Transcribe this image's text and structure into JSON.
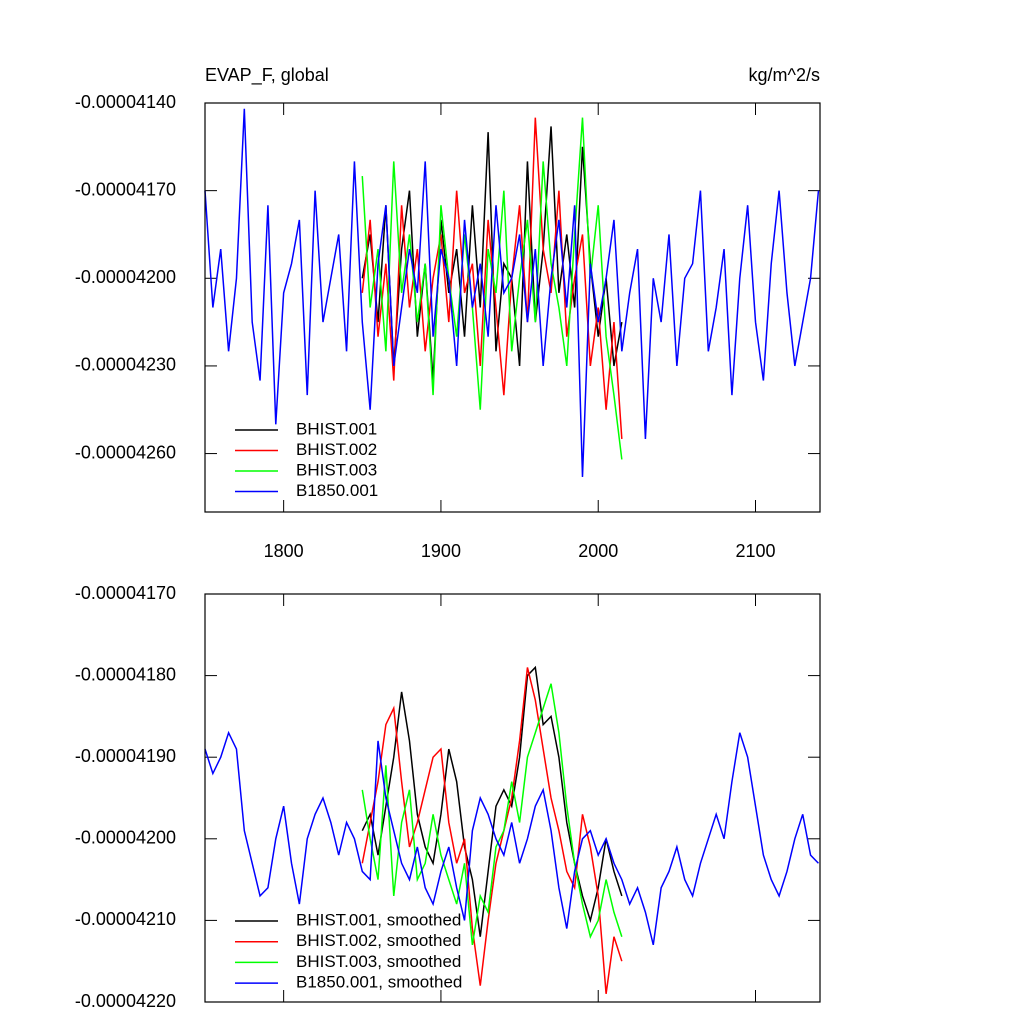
{
  "chart_data": [
    {
      "type": "line",
      "title": "EVAP_F, global",
      "units": "kg/m^2/s",
      "xlim": [
        1750,
        2141
      ],
      "xticks": [
        1800,
        1900,
        2000,
        2100
      ],
      "ylim": [
        -4.28e-05,
        -4.14e-05
      ],
      "yticks": [
        {
          "value": -4.14e-05,
          "label": "-0.00004140"
        },
        {
          "value": -4.17e-05,
          "label": "-0.00004170"
        },
        {
          "value": -4.2e-05,
          "label": "-0.00004200"
        },
        {
          "value": -4.23e-05,
          "label": "-0.00004230"
        },
        {
          "value": -4.26e-05,
          "label": "-0.00004260"
        }
      ],
      "series": [
        {
          "name": "BHIST.001",
          "color": "#000000",
          "x": [
            1850,
            1855,
            1860,
            1865,
            1870,
            1875,
            1880,
            1885,
            1890,
            1895,
            1900,
            1905,
            1910,
            1915,
            1920,
            1925,
            1930,
            1935,
            1940,
            1945,
            1950,
            1955,
            1960,
            1965,
            1970,
            1975,
            1980,
            1985,
            1990,
            1995,
            2000,
            2005,
            2010,
            2015
          ],
          "values": [
            -4.2e-05,
            -4.185e-05,
            -4.215e-05,
            -4.175e-05,
            -4.23e-05,
            -4.19e-05,
            -4.17e-05,
            -4.22e-05,
            -4.195e-05,
            -4.235e-05,
            -4.18e-05,
            -4.205e-05,
            -4.19e-05,
            -4.22e-05,
            -4.175e-05,
            -4.21e-05,
            -4.15e-05,
            -4.225e-05,
            -4.195e-05,
            -4.2e-05,
            -4.23e-05,
            -4.16e-05,
            -4.215e-05,
            -4.19e-05,
            -4.148e-05,
            -4.205e-05,
            -4.185e-05,
            -4.21e-05,
            -4.155e-05,
            -4.195e-05,
            -4.22e-05,
            -4.2e-05,
            -4.23e-05,
            -4.215e-05
          ]
        },
        {
          "name": "BHIST.002",
          "color": "#ff0000",
          "x": [
            1850,
            1855,
            1860,
            1865,
            1870,
            1875,
            1880,
            1885,
            1890,
            1895,
            1900,
            1905,
            1910,
            1915,
            1920,
            1925,
            1930,
            1935,
            1940,
            1945,
            1950,
            1955,
            1960,
            1965,
            1970,
            1975,
            1980,
            1985,
            1990,
            1995,
            2000,
            2005,
            2010,
            2015
          ],
          "values": [
            -4.205e-05,
            -4.18e-05,
            -4.22e-05,
            -4.195e-05,
            -4.235e-05,
            -4.175e-05,
            -4.21e-05,
            -4.19e-05,
            -4.225e-05,
            -4.2e-05,
            -4.185e-05,
            -4.215e-05,
            -4.17e-05,
            -4.205e-05,
            -4.195e-05,
            -4.23e-05,
            -4.18e-05,
            -4.21e-05,
            -4.24e-05,
            -4.2e-05,
            -4.175e-05,
            -4.215e-05,
            -4.145e-05,
            -4.19e-05,
            -4.205e-05,
            -4.17e-05,
            -4.22e-05,
            -4.2e-05,
            -4.185e-05,
            -4.23e-05,
            -4.21e-05,
            -4.245e-05,
            -4.215e-05,
            -4.255e-05
          ]
        },
        {
          "name": "BHIST.003",
          "color": "#00ff00",
          "x": [
            1850,
            1855,
            1860,
            1865,
            1870,
            1875,
            1880,
            1885,
            1890,
            1895,
            1900,
            1905,
            1910,
            1915,
            1920,
            1925,
            1930,
            1935,
            1940,
            1945,
            1950,
            1955,
            1960,
            1965,
            1970,
            1975,
            1980,
            1985,
            1990,
            1995,
            2000,
            2005,
            2010,
            2015
          ],
          "values": [
            -4.165e-05,
            -4.21e-05,
            -4.19e-05,
            -4.225e-05,
            -4.16e-05,
            -4.205e-05,
            -4.185e-05,
            -4.215e-05,
            -4.195e-05,
            -4.24e-05,
            -4.175e-05,
            -4.2e-05,
            -4.22e-05,
            -4.185e-05,
            -4.21e-05,
            -4.245e-05,
            -4.19e-05,
            -4.205e-05,
            -4.17e-05,
            -4.225e-05,
            -4.2e-05,
            -4.18e-05,
            -4.215e-05,
            -4.16e-05,
            -4.195e-05,
            -4.21e-05,
            -4.23e-05,
            -4.185e-05,
            -4.145e-05,
            -4.2e-05,
            -4.175e-05,
            -4.22e-05,
            -4.24e-05,
            -4.262e-05
          ]
        },
        {
          "name": "B1850.001",
          "color": "#0000ff",
          "x": [
            1750,
            1755,
            1760,
            1765,
            1770,
            1775,
            1780,
            1785,
            1790,
            1795,
            1800,
            1805,
            1810,
            1815,
            1820,
            1825,
            1830,
            1835,
            1840,
            1845,
            1850,
            1855,
            1860,
            1865,
            1870,
            1875,
            1880,
            1885,
            1890,
            1895,
            1900,
            1905,
            1910,
            1915,
            1920,
            1925,
            1930,
            1935,
            1940,
            1945,
            1950,
            1955,
            1960,
            1965,
            1970,
            1975,
            1980,
            1985,
            1990,
            1995,
            2000,
            2005,
            2010,
            2015,
            2020,
            2025,
            2030,
            2035,
            2040,
            2045,
            2050,
            2055,
            2060,
            2065,
            2070,
            2075,
            2080,
            2085,
            2090,
            2095,
            2100,
            2105,
            2110,
            2115,
            2120,
            2125,
            2130,
            2135,
            2140
          ],
          "values": [
            -4.17e-05,
            -4.21e-05,
            -4.19e-05,
            -4.225e-05,
            -4.2e-05,
            -4.142e-05,
            -4.215e-05,
            -4.235e-05,
            -4.175e-05,
            -4.25e-05,
            -4.205e-05,
            -4.195e-05,
            -4.18e-05,
            -4.24e-05,
            -4.17e-05,
            -4.215e-05,
            -4.2e-05,
            -4.185e-05,
            -4.225e-05,
            -4.16e-05,
            -4.215e-05,
            -4.245e-05,
            -4.195e-05,
            -4.175e-05,
            -4.23e-05,
            -4.21e-05,
            -4.19e-05,
            -4.205e-05,
            -4.16e-05,
            -4.22e-05,
            -4.19e-05,
            -4.2e-05,
            -4.23e-05,
            -4.18e-05,
            -4.21e-05,
            -4.195e-05,
            -4.22e-05,
            -4.175e-05,
            -4.205e-05,
            -4.2e-05,
            -4.185e-05,
            -4.215e-05,
            -4.19e-05,
            -4.23e-05,
            -4.2e-05,
            -4.18e-05,
            -4.21e-05,
            -4.175e-05,
            -4.268e-05,
            -4.195e-05,
            -4.215e-05,
            -4.2e-05,
            -4.18e-05,
            -4.225e-05,
            -4.205e-05,
            -4.19e-05,
            -4.255e-05,
            -4.2e-05,
            -4.215e-05,
            -4.185e-05,
            -4.23e-05,
            -4.2e-05,
            -4.195e-05,
            -4.17e-05,
            -4.225e-05,
            -4.21e-05,
            -4.19e-05,
            -4.24e-05,
            -4.2e-05,
            -4.175e-05,
            -4.215e-05,
            -4.235e-05,
            -4.195e-05,
            -4.17e-05,
            -4.205e-05,
            -4.23e-05,
            -4.215e-05,
            -4.2e-05,
            -4.17e-05
          ]
        }
      ]
    },
    {
      "type": "line",
      "xlim": [
        1750,
        2141
      ],
      "xticks": [
        1800,
        1900,
        2000,
        2100
      ],
      "ylim": [
        -4.22e-05,
        -4.17e-05
      ],
      "yticks": [
        {
          "value": -4.17e-05,
          "label": "-0.00004170"
        },
        {
          "value": -4.18e-05,
          "label": "-0.00004180"
        },
        {
          "value": -4.19e-05,
          "label": "-0.00004190"
        },
        {
          "value": -4.2e-05,
          "label": "-0.00004200"
        },
        {
          "value": -4.21e-05,
          "label": "-0.00004210"
        },
        {
          "value": -4.22e-05,
          "label": "-0.00004220"
        }
      ],
      "series": [
        {
          "name": "BHIST.001, smoothed",
          "color": "#000000",
          "x": [
            1850,
            1855,
            1860,
            1865,
            1870,
            1875,
            1880,
            1885,
            1890,
            1895,
            1900,
            1905,
            1910,
            1915,
            1920,
            1925,
            1930,
            1935,
            1940,
            1945,
            1950,
            1955,
            1960,
            1965,
            1970,
            1975,
            1980,
            1985,
            1990,
            1995,
            2000,
            2005,
            2010,
            2015
          ],
          "values": [
            -4.199e-05,
            -4.197e-05,
            -4.202e-05,
            -4.196e-05,
            -4.19e-05,
            -4.182e-05,
            -4.188e-05,
            -4.197e-05,
            -4.201e-05,
            -4.203e-05,
            -4.197e-05,
            -4.189e-05,
            -4.193e-05,
            -4.201e-05,
            -4.205e-05,
            -4.212e-05,
            -4.204e-05,
            -4.196e-05,
            -4.194e-05,
            -4.196e-05,
            -4.19e-05,
            -4.18e-05,
            -4.179e-05,
            -4.186e-05,
            -4.185e-05,
            -4.19e-05,
            -4.198e-05,
            -4.203e-05,
            -4.207e-05,
            -4.21e-05,
            -4.206e-05,
            -4.2e-05,
            -4.204e-05,
            -4.207e-05
          ]
        },
        {
          "name": "BHIST.002, smoothed",
          "color": "#ff0000",
          "x": [
            1850,
            1855,
            1860,
            1865,
            1870,
            1875,
            1880,
            1885,
            1890,
            1895,
            1900,
            1905,
            1910,
            1915,
            1920,
            1925,
            1930,
            1935,
            1940,
            1945,
            1950,
            1955,
            1960,
            1965,
            1970,
            1975,
            1980,
            1985,
            1990,
            1995,
            2000,
            2005,
            2010,
            2015
          ],
          "values": [
            -4.203e-05,
            -4.198e-05,
            -4.193e-05,
            -4.186e-05,
            -4.184e-05,
            -4.193e-05,
            -4.201e-05,
            -4.198e-05,
            -4.194e-05,
            -4.19e-05,
            -4.189e-05,
            -4.198e-05,
            -4.203e-05,
            -4.2e-05,
            -4.211e-05,
            -4.218e-05,
            -4.21e-05,
            -4.203e-05,
            -4.199e-05,
            -4.195e-05,
            -4.188e-05,
            -4.179e-05,
            -4.183e-05,
            -4.189e-05,
            -4.195e-05,
            -4.199e-05,
            -4.204e-05,
            -4.206e-05,
            -4.197e-05,
            -4.201e-05,
            -4.207e-05,
            -4.219e-05,
            -4.212e-05,
            -4.215e-05
          ]
        },
        {
          "name": "BHIST.003, smoothed",
          "color": "#00ff00",
          "x": [
            1850,
            1855,
            1860,
            1865,
            1870,
            1875,
            1880,
            1885,
            1890,
            1895,
            1900,
            1905,
            1910,
            1915,
            1920,
            1925,
            1930,
            1935,
            1940,
            1945,
            1950,
            1955,
            1960,
            1965,
            1970,
            1975,
            1980,
            1985,
            1990,
            1995,
            2000,
            2005,
            2010,
            2015
          ],
          "values": [
            -4.194e-05,
            -4.2e-05,
            -4.205e-05,
            -4.191e-05,
            -4.207e-05,
            -4.198e-05,
            -4.194e-05,
            -4.205e-05,
            -4.203e-05,
            -4.197e-05,
            -4.202e-05,
            -4.205e-05,
            -4.208e-05,
            -4.203e-05,
            -4.213e-05,
            -4.207e-05,
            -4.209e-05,
            -4.201e-05,
            -4.199e-05,
            -4.193e-05,
            -4.198e-05,
            -4.19e-05,
            -4.187e-05,
            -4.184e-05,
            -4.181e-05,
            -4.187e-05,
            -4.196e-05,
            -4.203e-05,
            -4.208e-05,
            -4.212e-05,
            -4.21e-05,
            -4.205e-05,
            -4.209e-05,
            -4.212e-05
          ]
        },
        {
          "name": "B1850.001, smoothed",
          "color": "#0000ff",
          "x": [
            1750,
            1755,
            1760,
            1765,
            1770,
            1775,
            1780,
            1785,
            1790,
            1795,
            1800,
            1805,
            1810,
            1815,
            1820,
            1825,
            1830,
            1835,
            1840,
            1845,
            1850,
            1855,
            1860,
            1865,
            1870,
            1875,
            1880,
            1885,
            1890,
            1895,
            1900,
            1905,
            1910,
            1915,
            1920,
            1925,
            1930,
            1935,
            1940,
            1945,
            1950,
            1955,
            1960,
            1965,
            1970,
            1975,
            1980,
            1985,
            1990,
            1995,
            2000,
            2005,
            2010,
            2015,
            2020,
            2025,
            2030,
            2035,
            2040,
            2045,
            2050,
            2055,
            2060,
            2065,
            2070,
            2075,
            2080,
            2085,
            2090,
            2095,
            2100,
            2105,
            2110,
            2115,
            2120,
            2125,
            2130,
            2135,
            2140
          ],
          "values": [
            -4.189e-05,
            -4.192e-05,
            -4.19e-05,
            -4.187e-05,
            -4.189e-05,
            -4.199e-05,
            -4.203e-05,
            -4.207e-05,
            -4.206e-05,
            -4.2e-05,
            -4.196e-05,
            -4.203e-05,
            -4.208e-05,
            -4.2e-05,
            -4.197e-05,
            -4.195e-05,
            -4.198e-05,
            -4.202e-05,
            -4.198e-05,
            -4.2e-05,
            -4.204e-05,
            -4.205e-05,
            -4.188e-05,
            -4.195e-05,
            -4.199e-05,
            -4.203e-05,
            -4.205e-05,
            -4.201e-05,
            -4.206e-05,
            -4.208e-05,
            -4.204e-05,
            -4.201e-05,
            -4.206e-05,
            -4.21e-05,
            -4.199e-05,
            -4.195e-05,
            -4.197e-05,
            -4.2e-05,
            -4.202e-05,
            -4.198e-05,
            -4.203e-05,
            -4.2e-05,
            -4.196e-05,
            -4.194e-05,
            -4.199e-05,
            -4.206e-05,
            -4.211e-05,
            -4.204e-05,
            -4.2e-05,
            -4.199e-05,
            -4.202e-05,
            -4.2e-05,
            -4.203e-05,
            -4.205e-05,
            -4.208e-05,
            -4.206e-05,
            -4.209e-05,
            -4.213e-05,
            -4.206e-05,
            -4.204e-05,
            -4.201e-05,
            -4.205e-05,
            -4.207e-05,
            -4.203e-05,
            -4.2e-05,
            -4.197e-05,
            -4.2e-05,
            -4.193e-05,
            -4.187e-05,
            -4.19e-05,
            -4.196e-05,
            -4.202e-05,
            -4.205e-05,
            -4.207e-05,
            -4.204e-05,
            -4.2e-05,
            -4.197e-05,
            -4.202e-05,
            -4.203e-05
          ]
        }
      ]
    }
  ]
}
